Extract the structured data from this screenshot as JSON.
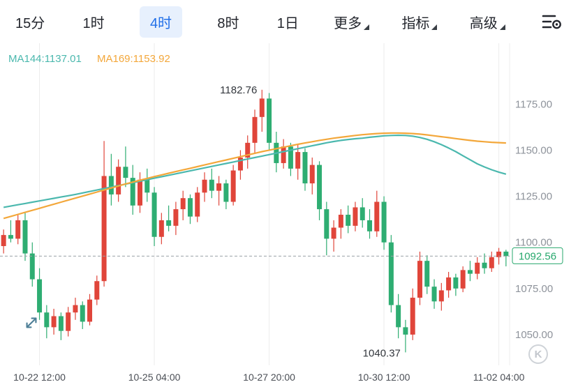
{
  "toolbar": {
    "tabs": [
      {
        "label": "15分",
        "active": false
      },
      {
        "label": "1时",
        "active": false
      },
      {
        "label": "4时",
        "active": true
      },
      {
        "label": "8时",
        "active": false
      },
      {
        "label": "1日",
        "active": false
      }
    ],
    "menus": [
      {
        "label": "更多"
      },
      {
        "label": "指标"
      },
      {
        "label": "高级"
      }
    ],
    "settings_icon": "indicator-settings-icon"
  },
  "indicators": {
    "ma144": {
      "label": "MA144:1137.01",
      "color": "#4bb8ae"
    },
    "ma169": {
      "label": "MA169:1153.92",
      "color": "#f3a73a"
    }
  },
  "watermark": {
    "label": "K"
  },
  "icons": {
    "toolbar_settings": "indicator-settings-icon",
    "expand": "expand-arrows-icon",
    "watermark": "k-badge-icon"
  },
  "chart_data": {
    "type": "candlestick",
    "interval": "4时",
    "title": "",
    "grid": "vertical-only",
    "colors": {
      "up": "#e0453a",
      "down": "#2ead72",
      "ma144": "#4bb8ae",
      "ma169": "#f3a73a",
      "grid": "#ececec",
      "axis_text": "#8e939b",
      "time_text": "#4a4e55",
      "hl_text": "#33373d",
      "current": "#27a86d",
      "dashed_line": "#9aa0a6"
    },
    "y_axis": {
      "ticks": [
        "1175.00",
        "1150.00",
        "1125.00",
        "1100.00",
        "1075.00",
        "1050.00"
      ],
      "tick_values": [
        1175,
        1150,
        1125,
        1100,
        1075,
        1050
      ],
      "range": [
        1036,
        1208
      ]
    },
    "x_axis": {
      "labels": [
        "10-22 12:00",
        "10-25 04:00",
        "10-27 20:00",
        "10-30 12:00",
        "11-02 04:00"
      ],
      "label_indices": [
        5,
        21,
        37,
        53,
        69
      ]
    },
    "high_label": {
      "text": "1182.76",
      "value": 1182.76
    },
    "low_label": {
      "text": "1040.37",
      "value": 1040.37
    },
    "current_price": {
      "text": "1092.56",
      "value": 1092.56
    },
    "candles": [
      [
        1098,
        1107,
        1094,
        1104
      ],
      [
        1104,
        1112,
        1100,
        1102
      ],
      [
        1102,
        1115,
        1099,
        1112
      ],
      [
        1112,
        1116,
        1090,
        1094
      ],
      [
        1094,
        1100,
        1076,
        1080
      ],
      [
        1080,
        1086,
        1058,
        1062
      ],
      [
        1062,
        1066,
        1048,
        1054
      ],
      [
        1054,
        1064,
        1050,
        1060
      ],
      [
        1060,
        1062,
        1047,
        1052
      ],
      [
        1052,
        1065,
        1049,
        1062
      ],
      [
        1062,
        1070,
        1058,
        1066
      ],
      [
        1066,
        1068,
        1053,
        1057
      ],
      [
        1057,
        1072,
        1055,
        1069
      ],
      [
        1069,
        1082,
        1066,
        1079
      ],
      [
        1079,
        1155,
        1076,
        1136
      ],
      [
        1136,
        1148,
        1120,
        1126
      ],
      [
        1126,
        1145,
        1122,
        1141
      ],
      [
        1141,
        1152,
        1130,
        1135
      ],
      [
        1135,
        1142,
        1115,
        1120
      ],
      [
        1120,
        1138,
        1116,
        1134
      ],
      [
        1134,
        1140,
        1122,
        1127
      ],
      [
        1127,
        1130,
        1098,
        1103
      ],
      [
        1103,
        1116,
        1099,
        1112
      ],
      [
        1112,
        1120,
        1106,
        1109
      ],
      [
        1109,
        1122,
        1104,
        1118
      ],
      [
        1118,
        1128,
        1112,
        1124
      ],
      [
        1124,
        1126,
        1110,
        1114
      ],
      [
        1114,
        1130,
        1111,
        1127
      ],
      [
        1127,
        1138,
        1122,
        1134
      ],
      [
        1134,
        1140,
        1124,
        1128
      ],
      [
        1128,
        1136,
        1120,
        1132
      ],
      [
        1132,
        1134,
        1118,
        1122
      ],
      [
        1122,
        1142,
        1120,
        1139
      ],
      [
        1139,
        1150,
        1134,
        1146
      ],
      [
        1146,
        1158,
        1140,
        1154
      ],
      [
        1154,
        1172,
        1148,
        1168
      ],
      [
        1168,
        1182.76,
        1160,
        1178
      ],
      [
        1178,
        1181,
        1150,
        1154
      ],
      [
        1154,
        1160,
        1138,
        1143
      ],
      [
        1143,
        1156,
        1140,
        1152
      ],
      [
        1152,
        1154,
        1136,
        1140
      ],
      [
        1140,
        1153,
        1134,
        1149
      ],
      [
        1149,
        1151,
        1128,
        1132
      ],
      [
        1132,
        1146,
        1126,
        1142
      ],
      [
        1142,
        1144,
        1112,
        1118
      ],
      [
        1118,
        1122,
        1093,
        1102
      ],
      [
        1102,
        1112,
        1095,
        1108
      ],
      [
        1108,
        1118,
        1102,
        1115
      ],
      [
        1115,
        1120,
        1105,
        1109
      ],
      [
        1109,
        1122,
        1106,
        1119
      ],
      [
        1119,
        1124,
        1108,
        1112
      ],
      [
        1112,
        1118,
        1102,
        1106
      ],
      [
        1106,
        1128,
        1103,
        1122
      ],
      [
        1122,
        1125,
        1096,
        1100
      ],
      [
        1100,
        1104,
        1062,
        1066
      ],
      [
        1066,
        1072,
        1048,
        1054
      ],
      [
        1054,
        1058,
        1040.37,
        1050
      ],
      [
        1050,
        1075,
        1047,
        1070
      ],
      [
        1070,
        1095,
        1066,
        1090
      ],
      [
        1090,
        1093,
        1072,
        1076
      ],
      [
        1076,
        1080,
        1064,
        1068
      ],
      [
        1068,
        1078,
        1063,
        1074
      ],
      [
        1074,
        1084,
        1070,
        1081
      ],
      [
        1081,
        1083,
        1071,
        1075
      ],
      [
        1075,
        1087,
        1073,
        1085
      ],
      [
        1085,
        1090,
        1079,
        1083
      ],
      [
        1083,
        1092,
        1080,
        1089
      ],
      [
        1089,
        1094,
        1083,
        1086
      ],
      [
        1086,
        1095,
        1084,
        1092
      ],
      [
        1092,
        1097,
        1088,
        1095
      ],
      [
        1095,
        1096,
        1087,
        1092.56
      ]
    ],
    "ma144": [
      1119.0,
      1119.7,
      1120.4,
      1121.1,
      1121.8,
      1122.5,
      1123.2,
      1123.9,
      1124.6,
      1125.3,
      1126.0,
      1126.8,
      1127.6,
      1128.4,
      1129.2,
      1130.0,
      1130.8,
      1131.6,
      1132.4,
      1133.2,
      1134.0,
      1134.8,
      1135.6,
      1136.4,
      1137.2,
      1138.0,
      1138.8,
      1139.6,
      1140.4,
      1141.2,
      1142.0,
      1142.8,
      1143.6,
      1144.4,
      1145.2,
      1146.0,
      1146.8,
      1147.6,
      1148.4,
      1149.2,
      1150.0,
      1150.8,
      1151.6,
      1152.4,
      1153.2,
      1154.0,
      1154.7,
      1155.3,
      1155.8,
      1156.2,
      1156.5,
      1157.0,
      1157.4,
      1157.8,
      1158.0,
      1158.1,
      1158.0,
      1157.6,
      1156.9,
      1155.9,
      1154.6,
      1153.0,
      1151.2,
      1149.2,
      1147.0,
      1144.8,
      1142.6,
      1140.9,
      1139.4,
      1138.1,
      1137.01
    ],
    "ma169": [
      1113.0,
      1114.1,
      1115.2,
      1116.3,
      1117.4,
      1118.5,
      1119.6,
      1120.7,
      1121.8,
      1122.9,
      1124.0,
      1125.1,
      1126.2,
      1127.3,
      1128.4,
      1129.5,
      1130.6,
      1131.7,
      1132.7,
      1133.7,
      1134.7,
      1135.7,
      1136.6,
      1137.5,
      1138.4,
      1139.3,
      1140.2,
      1141.1,
      1142.0,
      1142.9,
      1143.8,
      1144.7,
      1145.6,
      1146.5,
      1147.4,
      1148.3,
      1149.2,
      1150.0,
      1150.8,
      1151.6,
      1152.4,
      1153.2,
      1153.9,
      1154.6,
      1155.3,
      1155.9,
      1156.5,
      1157.0,
      1157.5,
      1158.0,
      1158.4,
      1158.7,
      1159.0,
      1159.2,
      1159.3,
      1159.3,
      1159.2,
      1159.0,
      1158.7,
      1158.3,
      1157.8,
      1157.3,
      1156.8,
      1156.3,
      1155.8,
      1155.3,
      1154.9,
      1154.6,
      1154.3,
      1154.1,
      1153.92
    ]
  }
}
